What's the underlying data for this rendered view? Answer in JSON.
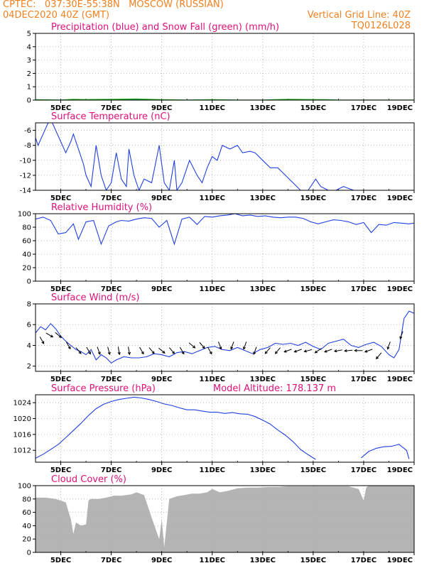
{
  "header": {
    "line1_left": "CPTEC:   037:30E-55:38N   MOSCOW (RUSSIAN)",
    "line2_left": "04DEC2020 40Z (GMT)",
    "line1_right": "Vertical Grid Line: 40Z",
    "line2_right": "TQ0126L028"
  },
  "colors": {
    "header": "#f08020",
    "title": "#e0107a",
    "series": "#2040e0",
    "snow": "#20b020",
    "cloud": "#b4b4b4",
    "grid": "#aaaaaa"
  },
  "chart_data": [
    {
      "id": "precip",
      "type": "line",
      "title": "Precipitation (blue) and Snow Fall (green) (mm/h)",
      "xlabels": [
        "5DEC",
        "7DEC",
        "9DEC",
        "11DEC",
        "13DEC",
        "15DEC",
        "17DEC",
        "19DEC"
      ],
      "x_range": [
        0,
        15
      ],
      "y_range": [
        0,
        5
      ],
      "y_ticks": [
        0,
        1,
        2,
        3,
        4,
        5
      ],
      "series": [
        {
          "color": "blue",
          "x": [
            0,
            1,
            1.5,
            2,
            3,
            4,
            5,
            6,
            7,
            8,
            9,
            10,
            11,
            11.5,
            12,
            13,
            14,
            15
          ],
          "y": [
            0,
            0,
            0.02,
            0,
            0,
            0.03,
            0,
            0,
            0.02,
            0,
            0,
            0.03,
            0.02,
            0,
            0,
            0,
            0,
            0
          ]
        },
        {
          "color": "green",
          "x": [
            0,
            1,
            1.5,
            2,
            3,
            4,
            5,
            6,
            7,
            8,
            9,
            10,
            11,
            11.5,
            12,
            13,
            14,
            15
          ],
          "y": [
            0.02,
            0,
            0.05,
            0.03,
            0.05,
            0.08,
            0.02,
            0,
            0.02,
            0,
            0,
            0.05,
            0.03,
            0.02,
            0,
            0,
            0,
            0
          ]
        }
      ]
    },
    {
      "id": "temp",
      "type": "line",
      "title": "Surface Temperature (nC)",
      "xlabels": [
        "5DEC",
        "7DEC",
        "9DEC",
        "11DEC",
        "13DEC",
        "15DEC",
        "17DEC",
        "19DEC"
      ],
      "x_range": [
        0,
        15
      ],
      "y_range": [
        -14,
        -5
      ],
      "y_ticks": [
        -14,
        -12,
        -10,
        -8,
        -6
      ],
      "series": [
        {
          "color": "blue",
          "x": [
            0,
            0.1,
            0.3,
            0.5,
            0.6,
            0.8,
            1.0,
            1.2,
            1.4,
            1.5,
            1.7,
            1.9,
            2.0,
            2.2,
            2.4,
            2.6,
            2.8,
            3.0,
            3.2,
            3.4,
            3.6,
            3.7,
            3.9,
            4.1,
            4.3,
            4.6,
            4.9,
            5.1,
            5.3,
            5.5,
            5.6,
            5.8,
            6.1,
            6.4,
            6.6,
            6.8,
            7.0,
            7.2,
            7.4,
            7.7,
            8.0,
            8.2,
            8.5,
            8.7,
            9.0,
            9.3,
            9.6,
            9.9,
            10.2,
            10.5,
            10.8,
            11.1,
            11.3,
            11.6,
            11.9,
            12.2,
            12.6,
            13.0,
            13.4,
            13.7
          ],
          "y": [
            -7,
            -8,
            -6.5,
            -5,
            -4.5,
            -6,
            -7.5,
            -9,
            -7.5,
            -6.5,
            -8.5,
            -10.5,
            -12,
            -13.5,
            -8,
            -12,
            -14,
            -13,
            -9,
            -12.5,
            -13.5,
            -8.5,
            -12,
            -14,
            -12.5,
            -13,
            -8,
            -13,
            -14,
            -10,
            -14,
            -13,
            -10,
            -12,
            -13,
            -11,
            -9.5,
            -10,
            -8,
            -8.5,
            -8,
            -9,
            -8.8,
            -9,
            -10,
            -11,
            -11,
            -12,
            -13,
            -14,
            -14,
            -12.5,
            -13.5,
            -14,
            -14,
            -13.5,
            -14,
            -14,
            -14,
            -14
          ]
        }
      ]
    },
    {
      "id": "rh",
      "type": "line",
      "title": "Relative Humidity (%)",
      "xlabels": [
        "5DEC",
        "7DEC",
        "9DEC",
        "11DEC",
        "13DEC",
        "15DEC",
        "17DEC",
        "19DEC"
      ],
      "x_range": [
        0,
        15
      ],
      "y_range": [
        0,
        100
      ],
      "y_ticks": [
        0,
        20,
        40,
        60,
        80,
        100
      ],
      "series": [
        {
          "color": "blue",
          "x": [
            0,
            0.3,
            0.6,
            0.9,
            1.2,
            1.5,
            1.7,
            2.0,
            2.3,
            2.6,
            2.9,
            3.2,
            3.4,
            3.7,
            4.0,
            4.3,
            4.6,
            4.9,
            5.2,
            5.5,
            5.8,
            6.1,
            6.4,
            6.7,
            7.0,
            7.3,
            7.6,
            7.9,
            8.2,
            8.5,
            8.8,
            9.1,
            9.4,
            9.7,
            10.0,
            10.3,
            10.6,
            10.9,
            11.2,
            11.5,
            11.8,
            12.1,
            12.4,
            12.7,
            13.0,
            13.3,
            13.6,
            13.9,
            14.2,
            14.5,
            14.8,
            15.0
          ],
          "y": [
            92,
            95,
            90,
            70,
            72,
            85,
            62,
            88,
            90,
            55,
            82,
            88,
            90,
            89,
            92,
            94,
            93,
            80,
            90,
            55,
            92,
            95,
            84,
            96,
            95,
            97,
            98,
            100,
            97,
            98,
            96,
            97,
            95,
            94,
            95,
            95,
            93,
            88,
            85,
            88,
            91,
            90,
            88,
            84,
            87,
            72,
            84,
            83,
            87,
            86,
            85,
            86
          ]
        }
      ]
    },
    {
      "id": "wind",
      "type": "line",
      "title": "Surface Wind (m/s)",
      "xlabels": [
        "5DEC",
        "7DEC",
        "9DEC",
        "11DEC",
        "13DEC",
        "15DEC",
        "17DEC",
        "19DEC"
      ],
      "x_range": [
        0,
        15
      ],
      "y_range": [
        1.5,
        8
      ],
      "y_ticks": [
        2,
        4,
        6,
        8
      ],
      "series": [
        {
          "color": "blue",
          "x": [
            0,
            0.2,
            0.4,
            0.6,
            0.8,
            1.0,
            1.2,
            1.4,
            1.6,
            1.8,
            2.0,
            2.2,
            2.4,
            2.6,
            2.8,
            3.0,
            3.2,
            3.5,
            3.8,
            4.1,
            4.4,
            4.7,
            5.0,
            5.3,
            5.6,
            5.9,
            6.2,
            6.5,
            6.8,
            7.1,
            7.4,
            7.7,
            8.0,
            8.3,
            8.6,
            8.9,
            9.2,
            9.5,
            9.8,
            10.1,
            10.4,
            10.7,
            11.0,
            11.3,
            11.6,
            11.9,
            12.2,
            12.5,
            12.8,
            13.1,
            13.4,
            13.7,
            14.0,
            14.2,
            14.4,
            14.6,
            14.8,
            15.0
          ],
          "y": [
            5.2,
            5.8,
            5.5,
            6.1,
            5.6,
            4.9,
            4.4,
            4.0,
            3.6,
            3.4,
            3.1,
            3.6,
            2.6,
            3.1,
            2.8,
            2.3,
            2.6,
            2.9,
            2.8,
            2.8,
            2.9,
            3.2,
            3.1,
            2.9,
            3.3,
            3.4,
            3.2,
            3.5,
            3.8,
            3.9,
            3.6,
            3.5,
            3.8,
            3.5,
            3.2,
            3.6,
            3.8,
            4.2,
            4.1,
            4.2,
            4.0,
            4.3,
            3.9,
            3.6,
            4.2,
            4.4,
            4.6,
            4.0,
            3.8,
            4.1,
            4.3,
            3.9,
            3.1,
            2.8,
            3.6,
            6.6,
            7.3,
            7.1
          ]
        }
      ]
    },
    {
      "id": "pres",
      "type": "line",
      "title": "Surface Pressure (hPa)",
      "note": "Model Altitude: 178.137  m",
      "xlabels": [
        "5DEC",
        "7DEC",
        "9DEC",
        "11DEC",
        "13DEC",
        "15DEC",
        "17DEC",
        "19DEC"
      ],
      "x_range": [
        0,
        15
      ],
      "y_range": [
        1009,
        1026
      ],
      "y_ticks": [
        1012,
        1016,
        1020,
        1024
      ],
      "series": [
        {
          "color": "blue",
          "x": [
            0,
            0.3,
            0.6,
            0.9,
            1.2,
            1.5,
            1.8,
            2.1,
            2.4,
            2.7,
            3.0,
            3.3,
            3.6,
            3.9,
            4.2,
            4.5,
            4.8,
            5.1,
            5.4,
            5.7,
            6.0,
            6.3,
            6.6,
            6.9,
            7.2,
            7.5,
            7.8,
            8.1,
            8.4,
            8.7,
            9.0,
            9.3,
            9.6,
            9.9,
            10.2,
            10.5,
            10.8,
            11.1
          ],
          "y": [
            1010,
            1011,
            1012.2,
            1013.5,
            1015.2,
            1017,
            1018.8,
            1020.8,
            1022.5,
            1023.6,
            1024.3,
            1024.8,
            1025.1,
            1025.4,
            1025.2,
            1024.8,
            1024.3,
            1023.7,
            1023.3,
            1022.7,
            1022.2,
            1022.2,
            1021.9,
            1021.6,
            1021.6,
            1021.3,
            1021.5,
            1021.2,
            1021.1,
            1020.5,
            1019.6,
            1018.6,
            1017.1,
            1015.8,
            1014.2,
            1012.2,
            1010.9,
            1009.7
          ]
        },
        {
          "color": "blue",
          "x": [
            12.9,
            13.2,
            13.5,
            13.8,
            14.1,
            14.4,
            14.7,
            14.8
          ],
          "y": [
            1010.1,
            1011.7,
            1012.5,
            1012.9,
            1013,
            1013.5,
            1012,
            1009.8
          ]
        }
      ]
    },
    {
      "id": "cloud",
      "type": "area",
      "title": "Cloud Cover (%)",
      "xlabels": [
        "5DEC",
        "7DEC",
        "9DEC",
        "11DEC",
        "13DEC",
        "15DEC",
        "17DEC",
        "19DEC"
      ],
      "x_range": [
        0,
        15
      ],
      "y_range": [
        0,
        100
      ],
      "y_ticks": [
        0,
        20,
        40,
        60,
        80,
        100
      ],
      "series": [
        {
          "color": "gray",
          "x": [
            0,
            0.4,
            0.8,
            1.2,
            1.4,
            1.5,
            1.6,
            1.8,
            2.0,
            2.1,
            2.2,
            2.5,
            2.8,
            3.1,
            3.4,
            3.8,
            4.0,
            4.3,
            4.4,
            4.6,
            4.9,
            5.0,
            5.1,
            5.3,
            5.6,
            5.9,
            6.2,
            6.5,
            6.8,
            7.0,
            7.3,
            7.6,
            8.0,
            8.4,
            8.8,
            9.2,
            9.6,
            10.0,
            10.4,
            10.8,
            11.2,
            11.6,
            12.0,
            12.4,
            12.8,
            13.0,
            13.1,
            13.2,
            13.4,
            13.8,
            14.2,
            14.6,
            15.0
          ],
          "y": [
            82,
            82,
            80,
            75,
            50,
            28,
            45,
            40,
            42,
            78,
            80,
            80,
            82,
            85,
            85,
            87,
            90,
            86,
            75,
            52,
            20,
            50,
            8,
            80,
            84,
            86,
            88,
            88,
            90,
            95,
            90,
            92,
            96,
            97,
            97,
            98,
            98,
            99,
            99,
            99,
            99,
            99,
            99,
            99,
            95,
            78,
            97,
            100,
            100,
            100,
            100,
            100,
            100
          ]
        }
      ]
    }
  ],
  "wind_vectors": [
    {
      "x": 0.25,
      "dir": 300,
      "mag": 4.5
    },
    {
      "x": 0.55,
      "dir": 330,
      "mag": 5
    },
    {
      "x": 0.9,
      "dir": 320,
      "mag": 5
    },
    {
      "x": 1.3,
      "dir": 300,
      "mag": 4
    },
    {
      "x": 1.7,
      "dir": 310,
      "mag": 3.5
    },
    {
      "x": 2.1,
      "dir": 300,
      "mag": 3.5
    },
    {
      "x": 2.5,
      "dir": 290,
      "mag": 3.5
    },
    {
      "x": 2.9,
      "dir": 285,
      "mag": 3.5
    },
    {
      "x": 3.3,
      "dir": 280,
      "mag": 3.5
    },
    {
      "x": 3.7,
      "dir": 280,
      "mag": 3.5
    },
    {
      "x": 4.2,
      "dir": 300,
      "mag": 3.5
    },
    {
      "x": 4.6,
      "dir": 310,
      "mag": 3.5
    },
    {
      "x": 5.0,
      "dir": 320,
      "mag": 3.5
    },
    {
      "x": 5.4,
      "dir": 310,
      "mag": 3.5
    },
    {
      "x": 5.8,
      "dir": 300,
      "mag": 3.5
    },
    {
      "x": 6.2,
      "dir": 320,
      "mag": 4
    },
    {
      "x": 6.6,
      "dir": 310,
      "mag": 4
    },
    {
      "x": 6.9,
      "dir": 300,
      "mag": 3.5
    },
    {
      "x": 7.3,
      "dir": 290,
      "mag": 4
    },
    {
      "x": 7.8,
      "dir": 250,
      "mag": 4
    },
    {
      "x": 8.3,
      "dir": 250,
      "mag": 4
    },
    {
      "x": 8.7,
      "dir": 250,
      "mag": 3.5
    },
    {
      "x": 9.2,
      "dir": 230,
      "mag": 3.5
    },
    {
      "x": 9.6,
      "dir": 230,
      "mag": 3.5
    },
    {
      "x": 10.0,
      "dir": 200,
      "mag": 3.5
    },
    {
      "x": 10.4,
      "dir": 200,
      "mag": 3.5
    },
    {
      "x": 10.8,
      "dir": 195,
      "mag": 3.5
    },
    {
      "x": 11.2,
      "dir": 215,
      "mag": 3.5
    },
    {
      "x": 11.6,
      "dir": 200,
      "mag": 3.5
    },
    {
      "x": 12.0,
      "dir": 190,
      "mag": 3.5
    },
    {
      "x": 12.4,
      "dir": 185,
      "mag": 3.5
    },
    {
      "x": 12.8,
      "dir": 180,
      "mag": 3.5
    },
    {
      "x": 13.2,
      "dir": 200,
      "mag": 3.5
    },
    {
      "x": 13.6,
      "dir": 230,
      "mag": 3
    },
    {
      "x": 14.0,
      "dir": 250,
      "mag": 4
    },
    {
      "x": 14.5,
      "dir": 250,
      "mag": 5
    }
  ]
}
